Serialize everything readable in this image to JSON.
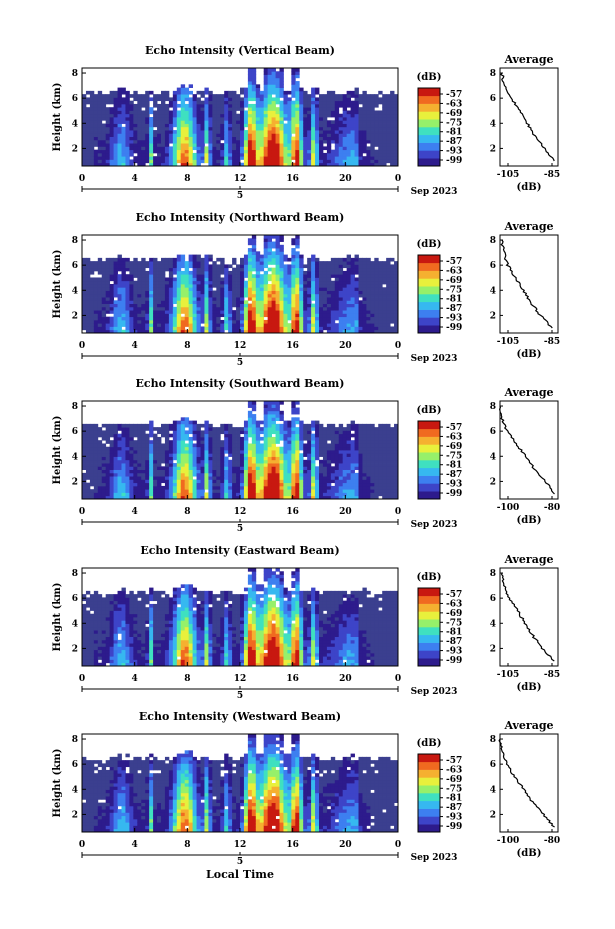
{
  "figure": {
    "xlabel_bottom": "Local Time",
    "date_label": "Sep 2023",
    "day_label": "5"
  },
  "colors": {
    "background_weak": "#3b3f8f",
    "no_data": "#ffffff",
    "colormap": [
      "#2d1b8c",
      "#3d44c8",
      "#3d7ff0",
      "#36b8f0",
      "#3fe0c0",
      "#96f06a",
      "#e8f03c",
      "#f5b030",
      "#f06a20",
      "#c81810"
    ]
  },
  "colorbar": {
    "unit": "(dB)",
    "labels": [
      "-57",
      "-63",
      "-69",
      "-75",
      "-81",
      "-87",
      "-93",
      "-99"
    ],
    "range": [
      -99,
      -57
    ]
  },
  "chart_data": [
    {
      "type": "heatmap",
      "title": "Echo Intensity (Vertical Beam)",
      "ylabel": "Height (km)",
      "x_ticks": [
        "0",
        "4",
        "8",
        "12",
        "16",
        "20",
        "0"
      ],
      "y_ticks": [
        "2",
        "4",
        "6",
        "8"
      ],
      "xlim": [
        0,
        24
      ],
      "ylim": [
        0.6,
        8.4
      ],
      "average": {
        "title": "Average",
        "xlabel": "(dB)",
        "x_ticks": [
          "-105",
          "-85"
        ],
        "y_ticks": [
          "2",
          "4",
          "6",
          "8"
        ],
        "xlim": [
          -110,
          -80
        ],
        "profile": [
          [
            -82,
            1
          ],
          [
            -87,
            2
          ],
          [
            -92,
            3
          ],
          [
            -96,
            4
          ],
          [
            -100,
            5
          ],
          [
            -104,
            6
          ],
          [
            -108,
            7
          ],
          [
            -109,
            8
          ]
        ]
      }
    },
    {
      "type": "heatmap",
      "title": "Echo Intensity (Northward Beam)",
      "ylabel": "Height (km)",
      "x_ticks": [
        "0",
        "4",
        "8",
        "12",
        "16",
        "20",
        "0"
      ],
      "y_ticks": [
        "2",
        "4",
        "6",
        "8"
      ],
      "xlim": [
        0,
        24
      ],
      "ylim": [
        0.6,
        8.4
      ],
      "average": {
        "title": "Average",
        "xlabel": "(dB)",
        "x_ticks": [
          "-105",
          "-85"
        ],
        "y_ticks": [
          "2",
          "4",
          "6",
          "8"
        ],
        "xlim": [
          -110,
          -80
        ],
        "profile": [
          [
            -83,
            1
          ],
          [
            -89,
            2
          ],
          [
            -94,
            3
          ],
          [
            -98,
            4
          ],
          [
            -102,
            5
          ],
          [
            -106,
            6
          ],
          [
            -108,
            7
          ],
          [
            -109,
            8
          ]
        ]
      }
    },
    {
      "type": "heatmap",
      "title": "Echo Intensity (Southward Beam)",
      "ylabel": "Height (km)",
      "x_ticks": [
        "0",
        "4",
        "8",
        "12",
        "16",
        "20",
        "0"
      ],
      "y_ticks": [
        "2",
        "4",
        "6",
        "8"
      ],
      "xlim": [
        0,
        24
      ],
      "ylim": [
        0.6,
        8.4
      ],
      "average": {
        "title": "Average",
        "xlabel": "(dB)",
        "x_ticks": [
          "-100",
          "-80"
        ],
        "y_ticks": [
          "2",
          "4",
          "6",
          "8"
        ],
        "xlim": [
          -110,
          -78
        ],
        "profile": [
          [
            -80,
            1
          ],
          [
            -85,
            2
          ],
          [
            -91,
            3
          ],
          [
            -96,
            4
          ],
          [
            -101,
            5
          ],
          [
            -106,
            6
          ],
          [
            -109,
            7
          ],
          [
            -110,
            8
          ]
        ]
      }
    },
    {
      "type": "heatmap",
      "title": "Echo Intensity (Eastward Beam)",
      "ylabel": "Height (km)",
      "x_ticks": [
        "0",
        "4",
        "8",
        "12",
        "16",
        "20",
        "0"
      ],
      "y_ticks": [
        "2",
        "4",
        "6",
        "8"
      ],
      "xlim": [
        0,
        24
      ],
      "ylim": [
        0.6,
        8.4
      ],
      "average": {
        "title": "Average",
        "xlabel": "(dB)",
        "x_ticks": [
          "-105",
          "-85"
        ],
        "y_ticks": [
          "2",
          "4",
          "6",
          "8"
        ],
        "xlim": [
          -110,
          -80
        ],
        "profile": [
          [
            -82,
            1
          ],
          [
            -88,
            2
          ],
          [
            -93,
            3
          ],
          [
            -97,
            4
          ],
          [
            -101,
            5
          ],
          [
            -105,
            6
          ],
          [
            -108,
            7
          ],
          [
            -109,
            8
          ]
        ]
      }
    },
    {
      "type": "heatmap",
      "title": "Echo Intensity (Westward Beam)",
      "ylabel": "Height (km)",
      "x_ticks": [
        "0",
        "4",
        "8",
        "12",
        "16",
        "20",
        "0"
      ],
      "y_ticks": [
        "2",
        "4",
        "6",
        "8"
      ],
      "xlim": [
        0,
        24
      ],
      "ylim": [
        0.6,
        8.4
      ],
      "average": {
        "title": "Average",
        "xlabel": "(dB)",
        "x_ticks": [
          "-100",
          "-80"
        ],
        "y_ticks": [
          "2",
          "4",
          "6",
          "8"
        ],
        "xlim": [
          -110,
          -78
        ],
        "profile": [
          [
            -80,
            1
          ],
          [
            -86,
            2
          ],
          [
            -92,
            3
          ],
          [
            -97,
            4
          ],
          [
            -102,
            5
          ],
          [
            -106,
            6
          ],
          [
            -109,
            7
          ],
          [
            -110,
            8
          ]
        ]
      }
    }
  ]
}
